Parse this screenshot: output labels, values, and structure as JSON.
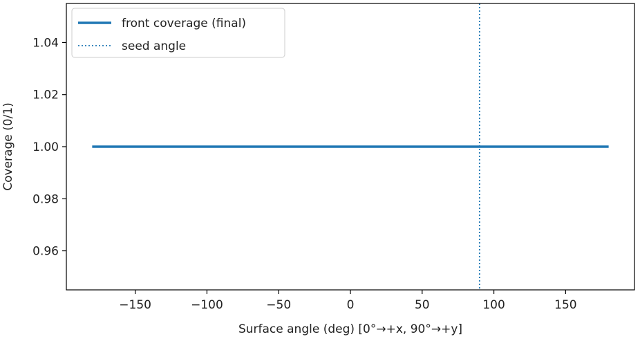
{
  "chart_data": {
    "type": "line",
    "title": "",
    "xlabel": "Surface angle (deg)  [0°→+x, 90°→+y]",
    "ylabel": "Coverage (0/1)",
    "xlim": [
      -198,
      198
    ],
    "ylim": [
      0.945,
      1.055
    ],
    "xticks": [
      -150,
      -100,
      -50,
      0,
      50,
      100,
      150
    ],
    "xtick_labels": [
      "−150",
      "−100",
      "−50",
      "0",
      "50",
      "100",
      "150"
    ],
    "yticks": [
      0.96,
      0.98,
      1.0,
      1.02,
      1.04
    ],
    "ytick_labels": [
      "0.96",
      "0.98",
      "1.00",
      "1.02",
      "1.04"
    ],
    "grid": false,
    "legend_position": "upper-left",
    "series": [
      {
        "name": "front coverage (final)",
        "style": "solid",
        "color": "#1f77b4",
        "x": [
          -180,
          180
        ],
        "y": [
          1.0,
          1.0
        ]
      }
    ],
    "vlines": [
      {
        "name": "seed angle",
        "style": "dotted",
        "color": "#1f77b4",
        "x": 90
      }
    ]
  }
}
